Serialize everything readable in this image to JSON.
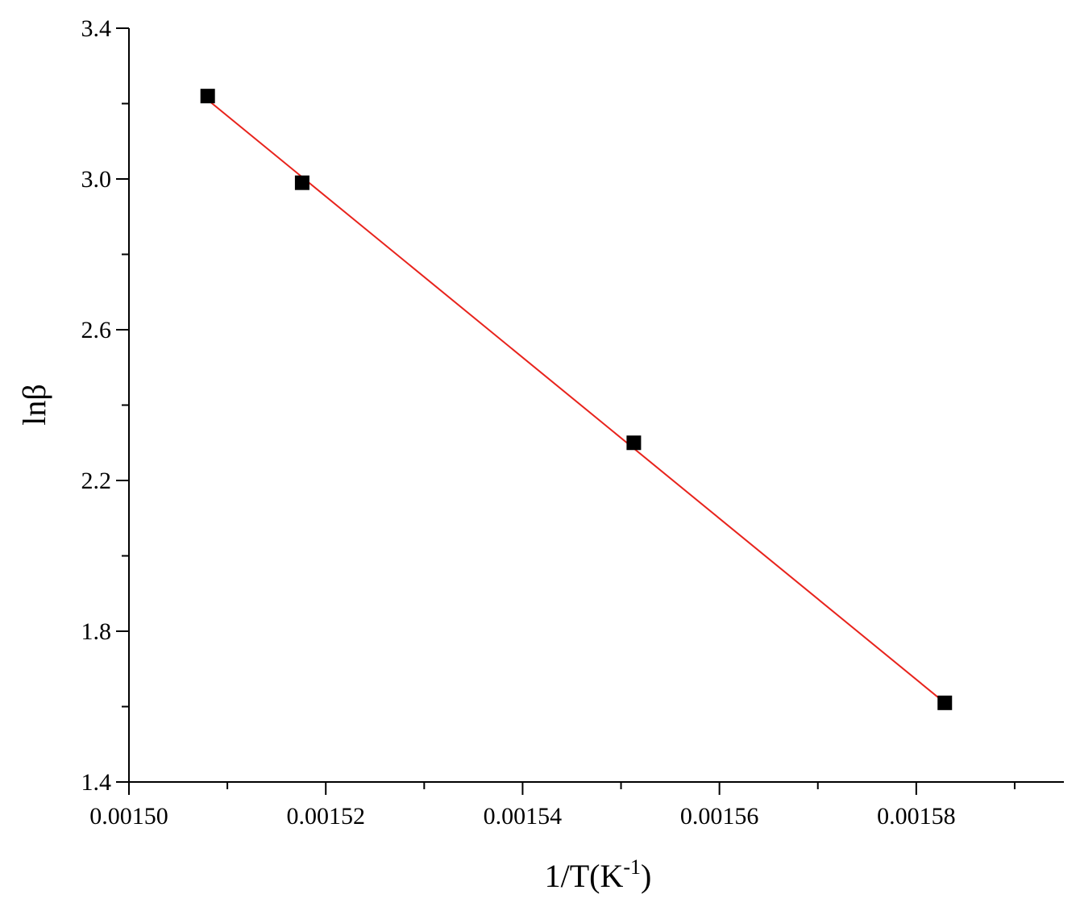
{
  "chart_data": {
    "type": "scatter",
    "xlabel": "1/T(K",
    "xlabel_sup": "-1",
    "xlabel_close": ")",
    "ylabel": "lnβ",
    "xlim": [
      0.0015,
      0.001595
    ],
    "ylim": [
      1.4,
      3.4
    ],
    "xticks": [
      "0.00150",
      "0.00152",
      "0.00154",
      "0.00156",
      "0.00158"
    ],
    "xtick_values": [
      0.0015,
      0.00152,
      0.00154,
      0.00156,
      0.00158
    ],
    "xminor_values": [
      0.00151,
      0.00153,
      0.00155,
      0.00157,
      0.00159
    ],
    "yticks": [
      "1.4",
      "1.8",
      "2.2",
      "2.6",
      "3.0",
      "3.4"
    ],
    "ytick_values": [
      1.4,
      1.8,
      2.2,
      2.6,
      3.0,
      3.4
    ],
    "yminor_values": [
      1.6,
      2.0,
      2.4,
      2.8,
      3.2
    ],
    "grid": false,
    "series": [
      {
        "marker": "square",
        "color": "#000000",
        "x": [
          0.001508,
          0.0015176,
          0.0015513,
          0.0015829
        ],
        "y": [
          3.22,
          2.99,
          2.3,
          1.61
        ]
      }
    ],
    "fit_line": {
      "color": "#e8231c",
      "x": [
        0.001508,
        0.0015829
      ],
      "y": [
        3.21,
        1.61
      ]
    }
  }
}
